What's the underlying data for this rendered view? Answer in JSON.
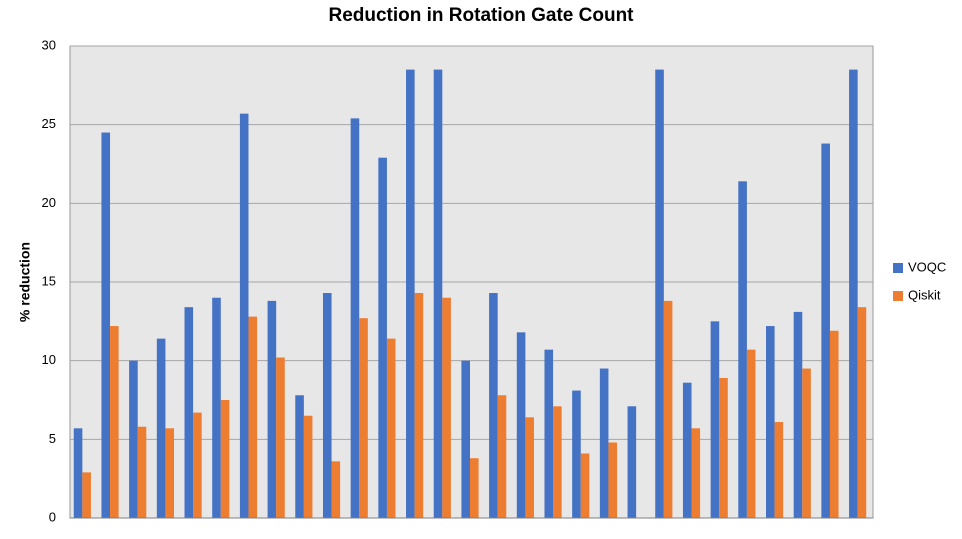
{
  "chart_data": {
    "type": "bar",
    "title": "Reduction in Rotation Gate Count",
    "y_label": "% reduction",
    "categories": [
      null,
      null,
      null,
      null,
      null,
      null,
      null,
      null,
      null,
      null,
      null,
      null,
      null,
      null,
      null,
      null,
      null,
      null,
      null,
      null,
      null,
      null,
      null,
      null,
      null,
      null,
      null,
      null,
      null
    ],
    "series": [
      {
        "name": "VOQC",
        "color": "#4472c4",
        "values": [
          5.7,
          24.5,
          10.0,
          11.4,
          13.4,
          14.0,
          25.7,
          13.8,
          7.8,
          14.3,
          25.4,
          22.9,
          28.5,
          28.5,
          10.0,
          14.3,
          11.8,
          10.7,
          8.1,
          9.5,
          7.1,
          28.5,
          8.6,
          12.5,
          21.4,
          12.2,
          13.1,
          23.8,
          28.5
        ]
      },
      {
        "name": "Qiskit",
        "color": "#ed7d31",
        "values": [
          2.9,
          12.2,
          5.8,
          5.7,
          6.7,
          7.5,
          12.8,
          10.2,
          6.5,
          3.6,
          12.7,
          11.4,
          14.3,
          14.0,
          3.8,
          7.8,
          6.4,
          7.1,
          4.1,
          4.8,
          null,
          13.8,
          5.7,
          8.9,
          10.7,
          6.1,
          9.5,
          11.9,
          13.4
        ]
      }
    ],
    "ylim": [
      0,
      30
    ],
    "yticks": [
      0,
      5,
      10,
      15,
      20,
      25,
      30
    ],
    "grid": true,
    "legend": "right"
  }
}
